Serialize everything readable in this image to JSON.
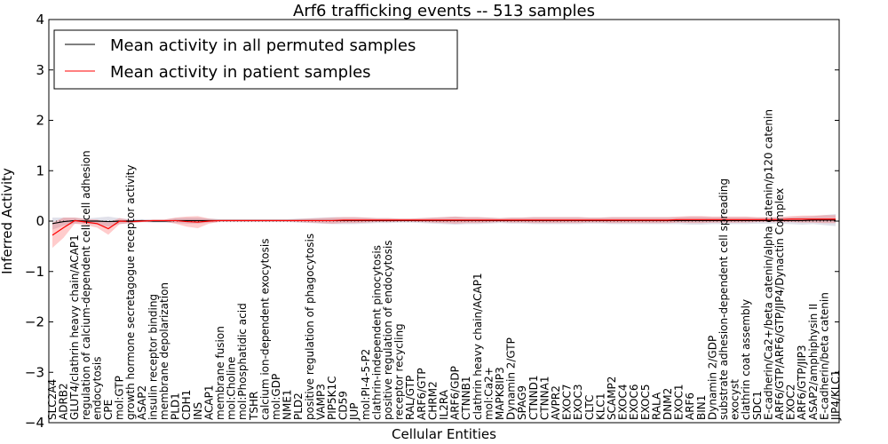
{
  "chart_data": {
    "type": "line",
    "title": "Arf6 trafficking events -- 513 samples",
    "xlabel": "Cellular Entities",
    "ylabel": "Inferred Activity",
    "ylim": [
      -4,
      4
    ],
    "yticks": [
      -4,
      -3,
      -2,
      -1,
      0,
      1,
      2,
      3,
      4
    ],
    "ytick_labels": [
      "−4",
      "−3",
      "−2",
      "−1",
      "0",
      "1",
      "2",
      "3",
      "4"
    ],
    "legend_position": "top-left",
    "categories": [
      "SLC2A4",
      "ADRB2",
      "GLUT4/clathrin heavy chain/ACAP1",
      "regulation of calcium-dependent cell-cell adhesion",
      "endocytosis",
      "CPE",
      "mol:GTP",
      "growth hormone secretagogue receptor activity",
      "ASAP2",
      "insulin receptor binding",
      "membrane depolarization",
      "PLD1",
      "CDH1",
      "INS",
      "ACAP1",
      "membrane fusion",
      "mol:Choline",
      "mol:Phosphatidic acid",
      "TSHR",
      "calcium ion-dependent exocytosis",
      "mol:GDP",
      "NME1",
      "PLD2",
      "positive regulation of phagocytosis",
      "VAMP3",
      "PIP5K1C",
      "CD59",
      "JUP",
      "mol:PI-4-5-P2",
      "clathrin-independent pinocytosis",
      "positive regulation of endocytosis",
      "receptor recycling",
      "RAL/GTP",
      "ARF6/GTP",
      "CHRM2",
      "IL2RA",
      "ARF6/GDP",
      "CTNNB1",
      "clathrin heavy chain/ACAP1",
      "mol:Ca2+",
      "MAPK8IP3",
      "Dynamin 2/GTP",
      "SPAG9",
      "CTNND1",
      "CTNNA1",
      "AVPR2",
      "EXOC7",
      "EXOC3",
      "CLTC",
      "KLC1",
      "SCAMP2",
      "EXOC4",
      "EXOC6",
      "EXOC5",
      "RALA",
      "DNM2",
      "EXOC1",
      "ARF6",
      "BIN1",
      "Dynamin 2/GDP",
      "substrate adhesion-dependent cell spreading",
      "exocyst",
      "clathrin coat assembly",
      "SDC1",
      "E-cadherin/Ca2+/beta catenin/alpha catenin/p120 catenin",
      "ARF6/GTP/ARF6/GTP/JIP4/Dynactin Complex",
      "EXOC2",
      "ARF6/GTP/JIP3",
      "ASAP2/amphiphysin II",
      "E-cadherin/beta catenin",
      "JIP4/KLC1"
    ],
    "series": [
      {
        "name": "Mean activity in all permuted samples",
        "color": "#000000",
        "values": [
          -0.05,
          -0.01,
          0.01,
          0.0,
          0.0,
          -0.01,
          0.0,
          0.0,
          0.01,
          0.0,
          0.0,
          0.01,
          0.01,
          0.01,
          0.01,
          0.01,
          0.01,
          0.01,
          0.01,
          0.01,
          0.01,
          0.01,
          0.01,
          0.01,
          0.01,
          0.01,
          0.01,
          0.01,
          0.01,
          0.01,
          0.01,
          0.01,
          0.01,
          0.01,
          0.01,
          0.01,
          0.01,
          0.01,
          0.01,
          0.01,
          0.01,
          0.01,
          0.01,
          0.01,
          0.01,
          0.01,
          0.01,
          0.01,
          0.01,
          0.01,
          0.01,
          0.01,
          0.01,
          0.01,
          0.01,
          0.01,
          0.01,
          0.01,
          0.01,
          0.01,
          0.01,
          0.01,
          0.01,
          0.01,
          0.01,
          0.01,
          0.01,
          0.01,
          0.02,
          0.02,
          0.02
        ],
        "band": [
          0.12,
          0.08,
          0.06,
          0.05,
          0.07,
          0.1,
          0.06,
          0.04,
          0.03,
          0.03,
          0.03,
          0.05,
          0.06,
          0.06,
          0.04,
          0.03,
          0.03,
          0.03,
          0.03,
          0.03,
          0.03,
          0.03,
          0.04,
          0.05,
          0.06,
          0.07,
          0.07,
          0.07,
          0.06,
          0.05,
          0.05,
          0.04,
          0.04,
          0.05,
          0.06,
          0.07,
          0.08,
          0.07,
          0.07,
          0.06,
          0.05,
          0.06,
          0.06,
          0.07,
          0.07,
          0.07,
          0.07,
          0.07,
          0.06,
          0.06,
          0.07,
          0.07,
          0.07,
          0.07,
          0.07,
          0.07,
          0.07,
          0.08,
          0.08,
          0.07,
          0.07,
          0.07,
          0.07,
          0.06,
          0.06,
          0.06,
          0.07,
          0.08,
          0.08,
          0.1,
          0.12
        ]
      },
      {
        "name": "Mean activity in patient samples",
        "color": "#ff0000",
        "values": [
          -0.28,
          -0.13,
          0.01,
          -0.02,
          -0.05,
          -0.15,
          0.0,
          -0.01,
          0.0,
          0.01,
          0.01,
          0.01,
          -0.01,
          -0.02,
          0.0,
          0.01,
          0.01,
          0.01,
          0.01,
          0.01,
          0.01,
          0.01,
          0.01,
          0.01,
          0.01,
          0.01,
          0.02,
          0.02,
          0.02,
          0.02,
          0.02,
          0.02,
          0.02,
          0.02,
          0.02,
          0.02,
          0.02,
          0.02,
          0.02,
          0.02,
          0.02,
          0.02,
          0.02,
          0.02,
          0.02,
          0.02,
          0.02,
          0.02,
          0.02,
          0.02,
          0.02,
          0.02,
          0.02,
          0.02,
          0.02,
          0.02,
          0.03,
          0.03,
          0.03,
          0.03,
          0.03,
          0.03,
          0.03,
          0.03,
          0.03,
          0.03,
          0.04,
          0.04,
          0.04,
          0.04,
          0.04
        ],
        "band": [
          0.25,
          0.2,
          0.06,
          0.06,
          0.08,
          0.12,
          0.06,
          0.03,
          0.02,
          0.02,
          0.02,
          0.06,
          0.1,
          0.12,
          0.05,
          0.02,
          0.02,
          0.02,
          0.02,
          0.02,
          0.02,
          0.02,
          0.03,
          0.04,
          0.05,
          0.06,
          0.06,
          0.06,
          0.05,
          0.04,
          0.04,
          0.03,
          0.03,
          0.04,
          0.05,
          0.06,
          0.07,
          0.06,
          0.06,
          0.05,
          0.04,
          0.05,
          0.05,
          0.06,
          0.06,
          0.06,
          0.06,
          0.06,
          0.05,
          0.05,
          0.06,
          0.06,
          0.06,
          0.06,
          0.06,
          0.06,
          0.06,
          0.07,
          0.07,
          0.06,
          0.06,
          0.06,
          0.06,
          0.05,
          0.05,
          0.05,
          0.06,
          0.07,
          0.07,
          0.08,
          0.08
        ]
      }
    ]
  }
}
